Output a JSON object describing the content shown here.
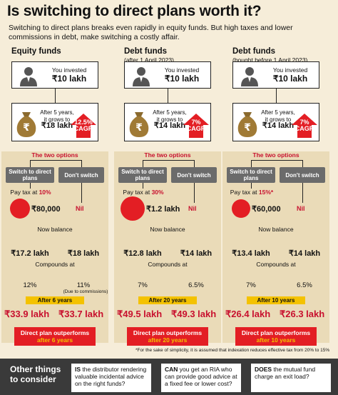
{
  "headline": "Is switching to direct plans worth it?",
  "intro": "Switching to direct plans breaks even rapidly in equity funds. But high taxes and lower commissions in debt, make switching a costly affair.",
  "columns": [
    {
      "title": "Equity funds",
      "subtitle": "",
      "invested_label": "You invested",
      "invested_amount": "₹10 lakh",
      "growth_line1": "After 5 years,",
      "growth_line2": "it grows to",
      "growth_amount": "₹18 lakh",
      "cagr_rate": "12.5%",
      "cagr_label": "CAGR",
      "two_options": "The two options",
      "switch_label": "Switch to direct plans",
      "dont_switch_label": "Don't switch",
      "pay_tax_prefix": "Pay tax at ",
      "pay_tax_rate": "10%",
      "tax_amount": "₹80,000",
      "tax_circle_scale": 0.55,
      "nil": "Nil",
      "now_balance": "Now balance",
      "balance_switch": "₹17.2 lakh",
      "balance_dont": "₹18 lakh",
      "compounds_at": "Compounds at",
      "rate_switch": "12%",
      "rate_dont": "11%",
      "rate_note": "(Due to commissions)",
      "after_years": "After 6 years",
      "final_switch": "₹33.9 lakh",
      "final_dont": "₹33.7 lakh",
      "outperform_line1": "Direct plan outperforms",
      "outperform_line2": "after 6 years"
    },
    {
      "title": "Debt funds",
      "subtitle": "(after 1 April 2023)",
      "invested_label": "You invested",
      "invested_amount": "₹10 lakh",
      "growth_line1": "After 5 years,",
      "growth_line2": "it grows to",
      "growth_amount": "₹14 lakh",
      "cagr_rate": "7%",
      "cagr_label": "CAGR",
      "two_options": "The two options",
      "switch_label": "Switch to direct plans",
      "dont_switch_label": "Don't switch",
      "pay_tax_prefix": "Pay tax at ",
      "pay_tax_rate": "30%",
      "tax_amount": "₹1.2 lakh",
      "tax_circle_scale": 1.0,
      "nil": "Nil",
      "now_balance": "Now balance",
      "balance_switch": "₹12.8 lakh",
      "balance_dont": "₹14 lakh",
      "compounds_at": "Compounds at",
      "rate_switch": "7%",
      "rate_dont": "6.5%",
      "rate_note": "",
      "after_years": "After 20 years",
      "final_switch": "₹49.5 lakh",
      "final_dont": "₹49.3 lakh",
      "outperform_line1": "Direct plan outperforms",
      "outperform_line2": "after 20 years"
    },
    {
      "title": "Debt funds",
      "subtitle": "(bought before 1 April 2023)",
      "invested_label": "You invested",
      "invested_amount": "₹10 lakh",
      "growth_line1": "After 5 years,",
      "growth_line2": "it grows to",
      "growth_amount": "₹14 lakh",
      "cagr_rate": "7%",
      "cagr_label": "CAGR",
      "two_options": "The two options",
      "switch_label": "Switch to direct plans",
      "dont_switch_label": "Don't switch",
      "pay_tax_prefix": "Pay tax at ",
      "pay_tax_rate": "15%*",
      "tax_amount": "₹60,000",
      "tax_circle_scale": 0.45,
      "nil": "Nil",
      "now_balance": "Now balance",
      "balance_switch": "₹13.4 lakh",
      "balance_dont": "₹14 lakh",
      "compounds_at": "Compounds at",
      "rate_switch": "7%",
      "rate_dont": "6.5%",
      "rate_note": "",
      "after_years": "After 10 years",
      "final_switch": "₹26.4 lakh",
      "final_dont": "₹26.3 lakh",
      "outperform_line1": "Direct plan outperforms",
      "outperform_line2": "after 10 years"
    }
  ],
  "footnote": "*For the sake of simplicity, it is assumed that indexation reduces effective tax from 20% to 15%",
  "bottom": {
    "lead": "Other things to consider",
    "questions": [
      {
        "bold": "IS",
        "rest": " the distributor rendering valuable incidental advice on the right funds?"
      },
      {
        "bold": "CAN",
        "rest": " you get an RIA who can provide good advice at a fixed fee or lower cost?"
      },
      {
        "bold": "DOES",
        "rest": " the mutual fund charge an exit load?"
      }
    ]
  },
  "colors": {
    "red": "#e31e24",
    "dark_red": "#c8102e",
    "yellow": "#f4c200",
    "grey_button": "#6b6b6b",
    "background": "#f6edd9",
    "panel": "#eadbb8",
    "bottom_bar": "#3a3a3a"
  }
}
